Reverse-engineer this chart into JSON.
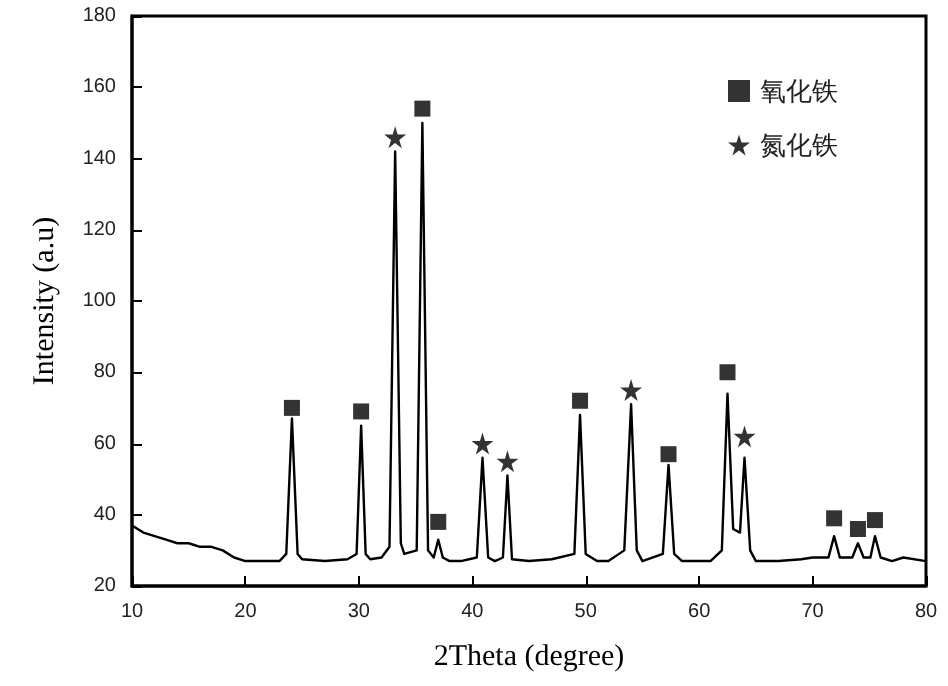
{
  "chart_data": {
    "type": "line",
    "xlabel": "2Theta (degree)",
    "ylabel": "Intensity (a.u)",
    "xlim": [
      10,
      80
    ],
    "xticks": [
      10,
      20,
      30,
      40,
      50,
      60,
      70,
      80
    ],
    "ylim": [
      20,
      180
    ],
    "yticks": [
      20,
      40,
      60,
      80,
      100,
      120,
      140,
      160,
      180
    ],
    "grid": false,
    "legend": "top right",
    "series": [
      {
        "color": "#000000",
        "marker": "none",
        "x": [
          10,
          11,
          12,
          13,
          14,
          15,
          16,
          17,
          18,
          19,
          20,
          21,
          22,
          23,
          23.6,
          24.1,
          24.6,
          25,
          27,
          29,
          29.8,
          30.2,
          30.6,
          31,
          32,
          32.7,
          33.2,
          33.7,
          34,
          35.1,
          35.6,
          36.1,
          36.6,
          37.0,
          37.4,
          38,
          39,
          40.4,
          40.9,
          41.4,
          42,
          42.7,
          43.1,
          43.5,
          45,
          47,
          49.0,
          49.5,
          50.0,
          51,
          52,
          53.4,
          54.0,
          54.5,
          55,
          56.8,
          57.3,
          57.8,
          58.5,
          60,
          61,
          62.0,
          62.5,
          63.0,
          63.6,
          64.0,
          64.5,
          65,
          67,
          69,
          70,
          71.4,
          71.9,
          72.4,
          73.5,
          74.0,
          74.5,
          75.1,
          75.5,
          76,
          77,
          78,
          80
        ],
        "values": [
          37,
          35,
          34,
          33,
          32,
          32,
          31,
          31,
          30,
          28,
          27,
          27,
          27,
          27,
          29,
          67,
          29,
          27.5,
          27,
          27.5,
          29,
          65,
          29,
          27.5,
          28,
          31,
          142,
          32,
          29,
          30,
          150,
          30,
          28,
          33,
          28,
          27,
          27,
          28,
          56,
          28,
          27,
          28,
          51,
          27.5,
          27,
          27.5,
          29,
          68,
          29,
          27,
          27,
          30,
          71,
          30,
          27,
          29,
          54,
          29,
          27,
          27,
          27,
          30,
          74,
          36,
          35,
          56,
          30,
          27,
          27,
          27.5,
          28,
          28,
          34,
          28,
          28,
          32,
          28,
          28,
          34,
          28,
          27,
          28,
          27
        ]
      },
      {
        "type": "scatter",
        "name": "氧化铁",
        "marker": "square",
        "color": "#000000",
        "x": [
          24.1,
          30.2,
          35.6,
          37.0,
          49.5,
          57.3,
          62.5,
          71.9,
          74.0,
          75.5
        ],
        "values": [
          70,
          69,
          154,
          38,
          72,
          57,
          80,
          39,
          36,
          38.5
        ]
      },
      {
        "type": "scatter",
        "name": "氮化铁",
        "marker": "star",
        "color": "#000000",
        "x": [
          33.2,
          40.9,
          43.1,
          54.0,
          64.0
        ],
        "values": [
          146,
          60,
          55,
          75,
          62
        ]
      }
    ]
  }
}
